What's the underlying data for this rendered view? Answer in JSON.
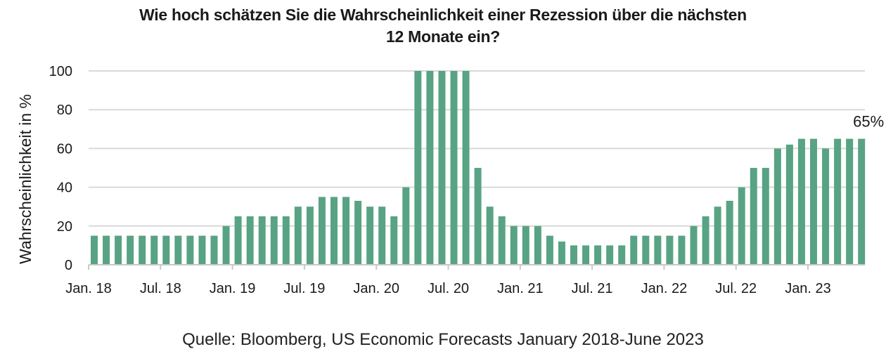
{
  "chart_data": {
    "type": "bar",
    "title_lines": [
      "Wie hoch schätzen Sie die Wahrscheinlichkeit einer Rezession über die nächsten",
      "12 Monate ein?"
    ],
    "xlabel": "",
    "ylabel": "Wahrscheinlichkeit in %",
    "ylim": [
      0,
      100
    ],
    "yticks": [
      0,
      20,
      40,
      60,
      80,
      100
    ],
    "grid": true,
    "bar_color": "#58a384",
    "xtick_labels": [
      "Jan. 18",
      "Jul. 18",
      "Jan. 19",
      "Jul. 19",
      "Jan. 20",
      "Jul. 20",
      "Jan. 21",
      "Jul. 21",
      "Jan. 22",
      "Jul. 22",
      "Jan. 23"
    ],
    "xtick_every": 6,
    "start_month": "2018-01",
    "values": [
      15,
      15,
      15,
      15,
      15,
      15,
      15,
      15,
      15,
      15,
      15,
      20,
      25,
      25,
      25,
      25,
      25,
      30,
      30,
      35,
      35,
      35,
      33,
      30,
      30,
      25,
      40,
      100,
      100,
      100,
      100,
      100,
      50,
      30,
      25,
      20,
      20,
      20,
      15,
      12,
      10,
      10,
      10,
      10,
      10,
      15,
      15,
      15,
      15,
      15,
      20,
      25,
      30,
      33,
      40,
      50,
      50,
      60,
      62,
      65,
      65,
      60,
      65,
      65,
      65
    ],
    "annotation": {
      "text": "65%",
      "bar_index": 64
    }
  },
  "source": "Quelle: Bloomberg, US Economic Forecasts January 2018-June 2023"
}
